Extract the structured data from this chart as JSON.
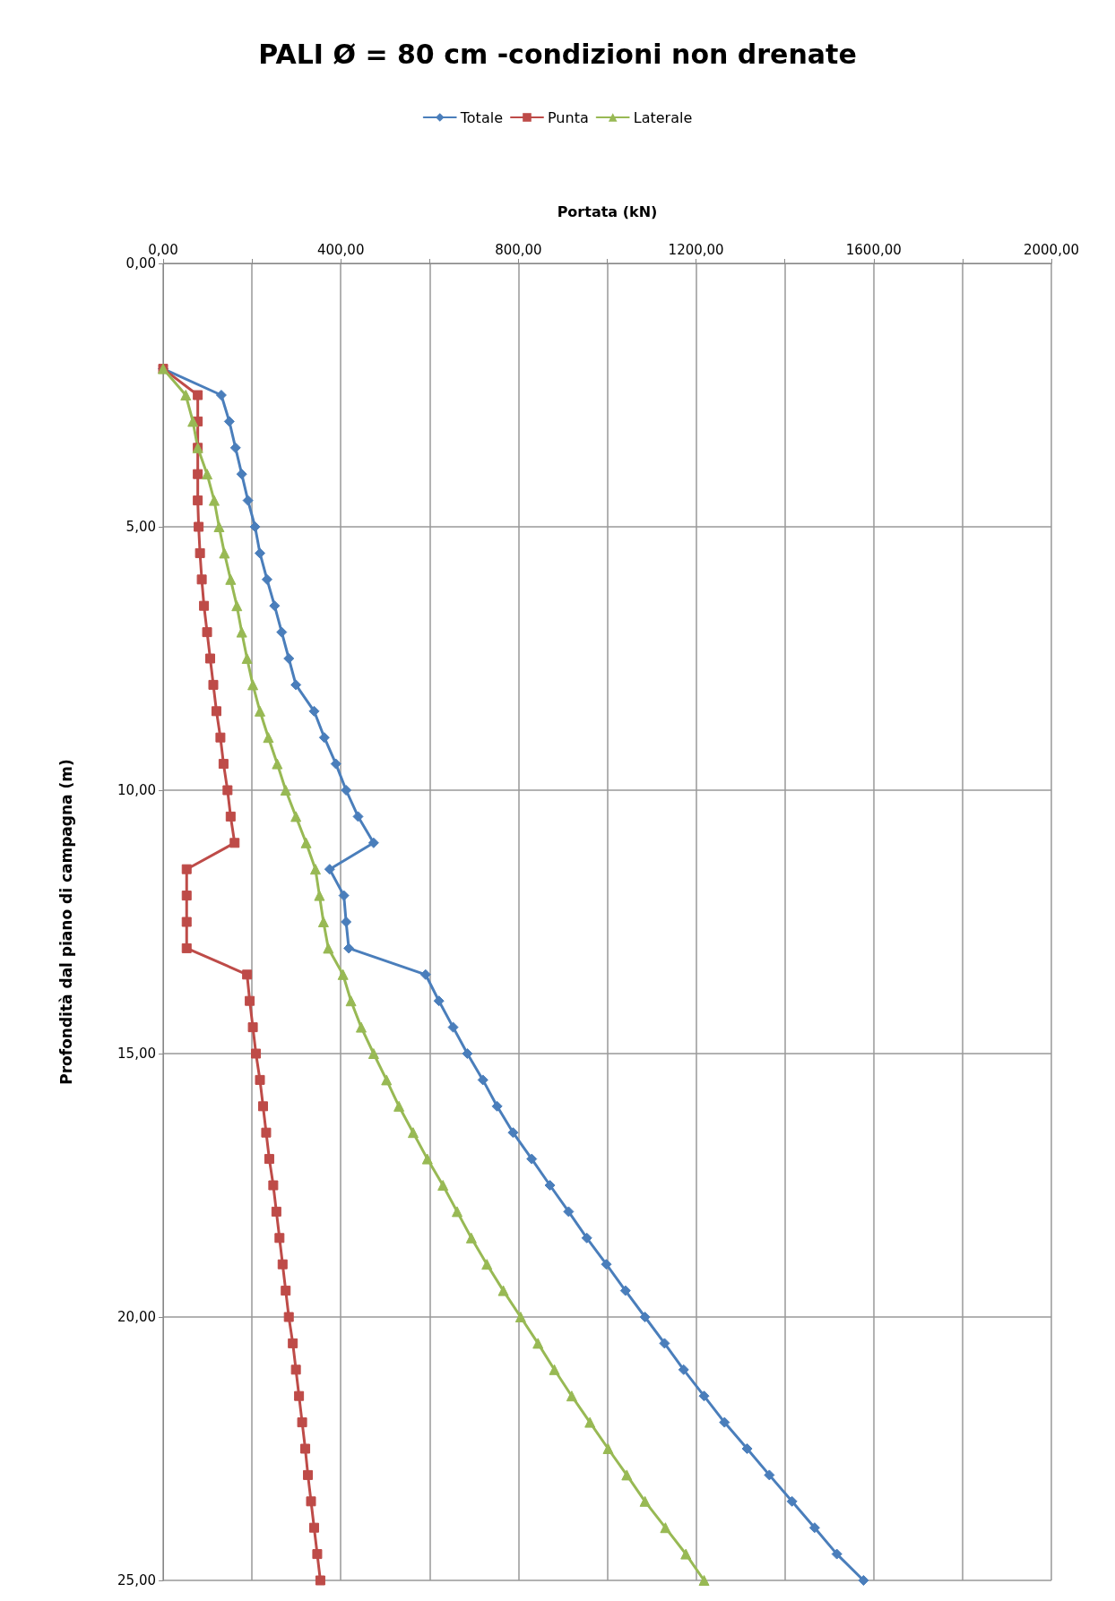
{
  "chart_data": {
    "type": "line",
    "title": "PALI Ø = 80 cm -condizioni non drenate",
    "xlabel": "Portata (kN)",
    "ylabel": "Profondità dal piano di campagna (m)",
    "xlim": [
      0,
      2000
    ],
    "xticks": [
      {
        "value": 0,
        "label": "0,00"
      },
      {
        "value": 200,
        "label": null
      },
      {
        "value": 400,
        "label": "400,00"
      },
      {
        "value": 600,
        "label": null
      },
      {
        "value": 800,
        "label": "800,00"
      },
      {
        "value": 1000,
        "label": null
      },
      {
        "value": 1200,
        "label": "1200,00"
      },
      {
        "value": 1400,
        "label": null
      },
      {
        "value": 1600,
        "label": "1600,00"
      },
      {
        "value": 1800,
        "label": null
      },
      {
        "value": 2000,
        "label": "2000,00"
      }
    ],
    "ylim": [
      25,
      0
    ],
    "yticks": [
      {
        "value": 0,
        "label": "0,00"
      },
      {
        "value": 5,
        "label": "5,00"
      },
      {
        "value": 10,
        "label": "10,00"
      },
      {
        "value": 15,
        "label": "15,00"
      },
      {
        "value": 20,
        "label": "20,00"
      },
      {
        "value": 25,
        "label": "25,00"
      }
    ],
    "grid": true,
    "legend": "top",
    "line_style": "solid",
    "series": [
      {
        "name": "Totale",
        "color": "#4a7ebb",
        "marker": "diamond",
        "x": [
          0,
          131,
          149,
          163,
          177,
          191,
          207,
          218,
          234,
          251,
          267,
          283,
          299,
          340,
          363,
          389,
          412,
          439,
          474,
          375,
          407,
          412,
          418,
          591,
          621,
          653,
          685,
          720,
          752,
          788,
          830,
          871,
          913,
          954,
          998,
          1041,
          1085,
          1129,
          1172,
          1218,
          1264,
          1315,
          1365,
          1416,
          1467,
          1517,
          1577
        ],
        "values": [
          2,
          2.5,
          3,
          3.5,
          4,
          4.5,
          5,
          5.5,
          6,
          6.5,
          7,
          7.5,
          8,
          8.5,
          9,
          9.5,
          10,
          10.5,
          11,
          11.5,
          12,
          12.5,
          13,
          13.5,
          14,
          14.5,
          15,
          15.5,
          16,
          16.5,
          17,
          17.5,
          18,
          18.5,
          19,
          19.5,
          20,
          20.5,
          21,
          21.5,
          22,
          22.5,
          23,
          23.5,
          24,
          24.5,
          25
        ]
      },
      {
        "name": "Punta",
        "color": "#be4b48",
        "marker": "square",
        "x": [
          0,
          78,
          78,
          78,
          78,
          78,
          80,
          83,
          87,
          92,
          99,
          106,
          113,
          120,
          129,
          136,
          145,
          152,
          161,
          53,
          53,
          53,
          53,
          189,
          195,
          202,
          209,
          218,
          225,
          232,
          239,
          248,
          255,
          262,
          269,
          276,
          283,
          292,
          299,
          306,
          313,
          320,
          326,
          333,
          340,
          347,
          354
        ],
        "values": [
          2,
          2.5,
          3,
          3.5,
          4,
          4.5,
          5,
          5.5,
          6,
          6.5,
          7,
          7.5,
          8,
          8.5,
          9,
          9.5,
          10,
          10.5,
          11,
          11.5,
          12,
          12.5,
          13,
          13.5,
          14,
          14.5,
          15,
          15.5,
          16,
          16.5,
          17,
          17.5,
          18,
          18.5,
          19,
          19.5,
          20,
          20.5,
          21,
          21.5,
          22,
          22.5,
          23,
          23.5,
          24,
          24.5,
          25
        ]
      },
      {
        "name": "Laterale",
        "color": "#98b954",
        "marker": "triangle",
        "x": [
          0,
          51,
          67,
          78,
          99,
          115,
          126,
          138,
          152,
          166,
          177,
          189,
          202,
          218,
          237,
          257,
          276,
          299,
          322,
          343,
          352,
          361,
          372,
          405,
          423,
          446,
          474,
          503,
          531,
          563,
          595,
          630,
          662,
          694,
          729,
          766,
          805,
          844,
          881,
          920,
          961,
          1002,
          1044,
          1085,
          1131,
          1177,
          1218
        ],
        "values": [
          2,
          2.5,
          3,
          3.5,
          4,
          4.5,
          5,
          5.5,
          6,
          6.5,
          7,
          7.5,
          8,
          8.5,
          9,
          9.5,
          10,
          10.5,
          11,
          11.5,
          12,
          12.5,
          13,
          13.5,
          14,
          14.5,
          15,
          15.5,
          16,
          16.5,
          17,
          17.5,
          18,
          18.5,
          19,
          19.5,
          20,
          20.5,
          21,
          21.5,
          22,
          22.5,
          23,
          23.5,
          24,
          24.5,
          25
        ]
      }
    ]
  }
}
